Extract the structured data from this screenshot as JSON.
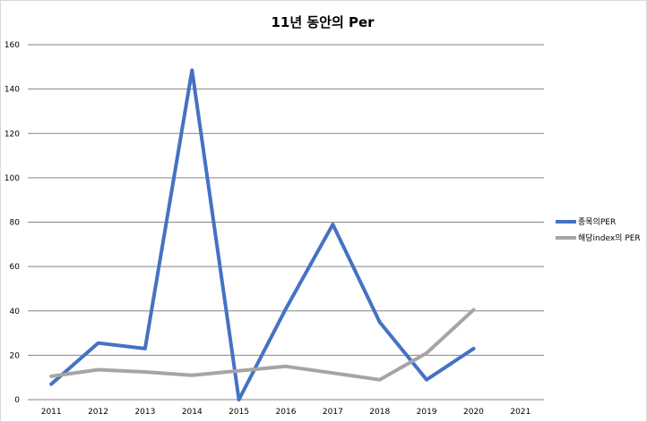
{
  "chart_data": {
    "type": "line",
    "title": "11년 동안의 Per",
    "categories": [
      "2011",
      "2012",
      "2013",
      "2014",
      "2015",
      "2016",
      "2017",
      "2018",
      "2019",
      "2020",
      "2021"
    ],
    "series": [
      {
        "name": "종목의PER",
        "color": "#4472c4",
        "values": [
          7,
          25.5,
          23,
          148.5,
          0,
          41,
          79,
          35,
          9,
          23,
          null
        ]
      },
      {
        "name": "해당index의 PER",
        "color": "#a5a5a5",
        "values": [
          10.5,
          13.5,
          12.5,
          11,
          13,
          15,
          12,
          9,
          21,
          40.5,
          null
        ]
      }
    ],
    "ylim": [
      0,
      160
    ],
    "yticks": [
      0,
      20,
      40,
      60,
      80,
      100,
      120,
      140,
      160
    ],
    "grid": true,
    "legend": "right"
  }
}
